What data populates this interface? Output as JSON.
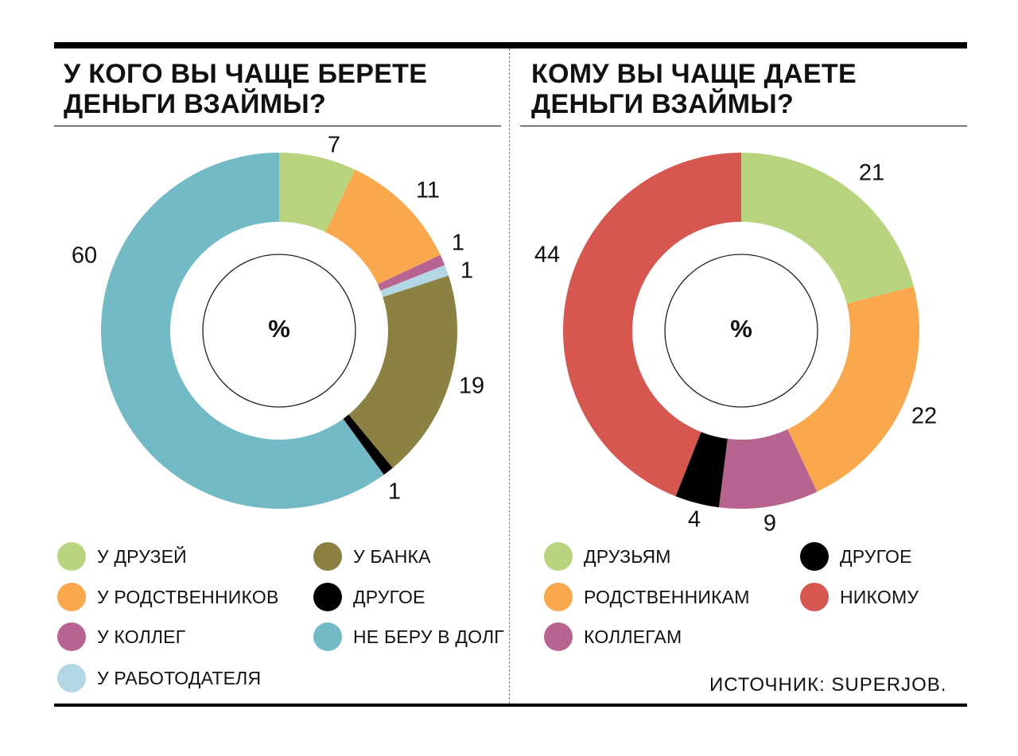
{
  "chart_data": [
    {
      "type": "pie",
      "title": "У КОГО ВЫ ЧАЩЕ БЕРЕТЕ\nДЕНЬГИ ВЗАЙМЫ?",
      "center_label": "%",
      "slices": [
        {
          "name": "У ДРУЗЕЙ",
          "value": 7,
          "label": "7",
          "color": "#b8d47f"
        },
        {
          "name": "У РОДСТВЕННИКОВ",
          "value": 11,
          "label": "11",
          "color": "#f9a84e"
        },
        {
          "name": "У КОЛЛЕГ",
          "value": 1,
          "label": "1",
          "color": "#b86491"
        },
        {
          "name": "У РАБОТОДАТЕЛЯ",
          "value": 1,
          "label": "1",
          "color": "#b3d7e5"
        },
        {
          "name": "У БАНКА",
          "value": 19,
          "label": "19",
          "color": "#8a8143"
        },
        {
          "name": "ДРУГОЕ",
          "value": 1,
          "label": "1",
          "color": "#000000"
        },
        {
          "name": "НЕ БЕРУ В ДОЛГ",
          "value": 60,
          "label": "60",
          "color": "#72bac5"
        }
      ]
    },
    {
      "type": "pie",
      "title": "КОМУ ВЫ ЧАЩЕ ДАЕТЕ\nДЕНЬГИ ВЗАЙМЫ?",
      "center_label": "%",
      "slices": [
        {
          "name": "ДРУЗЬЯМ",
          "value": 21,
          "label": "21",
          "color": "#b8d47f"
        },
        {
          "name": "РОДСТВЕННИКАМ",
          "value": 22,
          "label": "22",
          "color": "#f9a84e"
        },
        {
          "name": "КОЛЛЕГАМ",
          "value": 9,
          "label": "9",
          "color": "#b86491"
        },
        {
          "name": "ДРУГОЕ",
          "value": 4,
          "label": "4",
          "color": "#000000"
        },
        {
          "name": "НИКОМУ",
          "value": 44,
          "label": "44",
          "color": "#d65650"
        }
      ]
    }
  ],
  "legend_left": [
    {
      "label": "У ДРУЗЕЙ",
      "color": "#b8d47f"
    },
    {
      "label": "У РОДСТВЕННИКОВ",
      "color": "#f9a84e"
    },
    {
      "label": "У КОЛЛЕГ",
      "color": "#b86491"
    },
    {
      "label": "У РАБОТОДАТЕЛЯ",
      "color": "#b3d7e5"
    },
    {
      "label": "У БАНКА",
      "color": "#8a8143"
    },
    {
      "label": "ДРУГОЕ",
      "color": "#000000"
    },
    {
      "label": "НЕ БЕРУ В ДОЛГ",
      "color": "#72bac5"
    }
  ],
  "legend_right": [
    {
      "label": "ДРУЗЬЯМ",
      "color": "#b8d47f"
    },
    {
      "label": "РОДСТВЕННИКАМ",
      "color": "#f9a84e"
    },
    {
      "label": "КОЛЛЕГАМ",
      "color": "#b86491"
    },
    {
      "label": "ДРУГОЕ",
      "color": "#000000"
    },
    {
      "label": "НИКОМУ",
      "color": "#d65650"
    }
  ],
  "source": "ИСТОЧНИК: SUPERJOB."
}
